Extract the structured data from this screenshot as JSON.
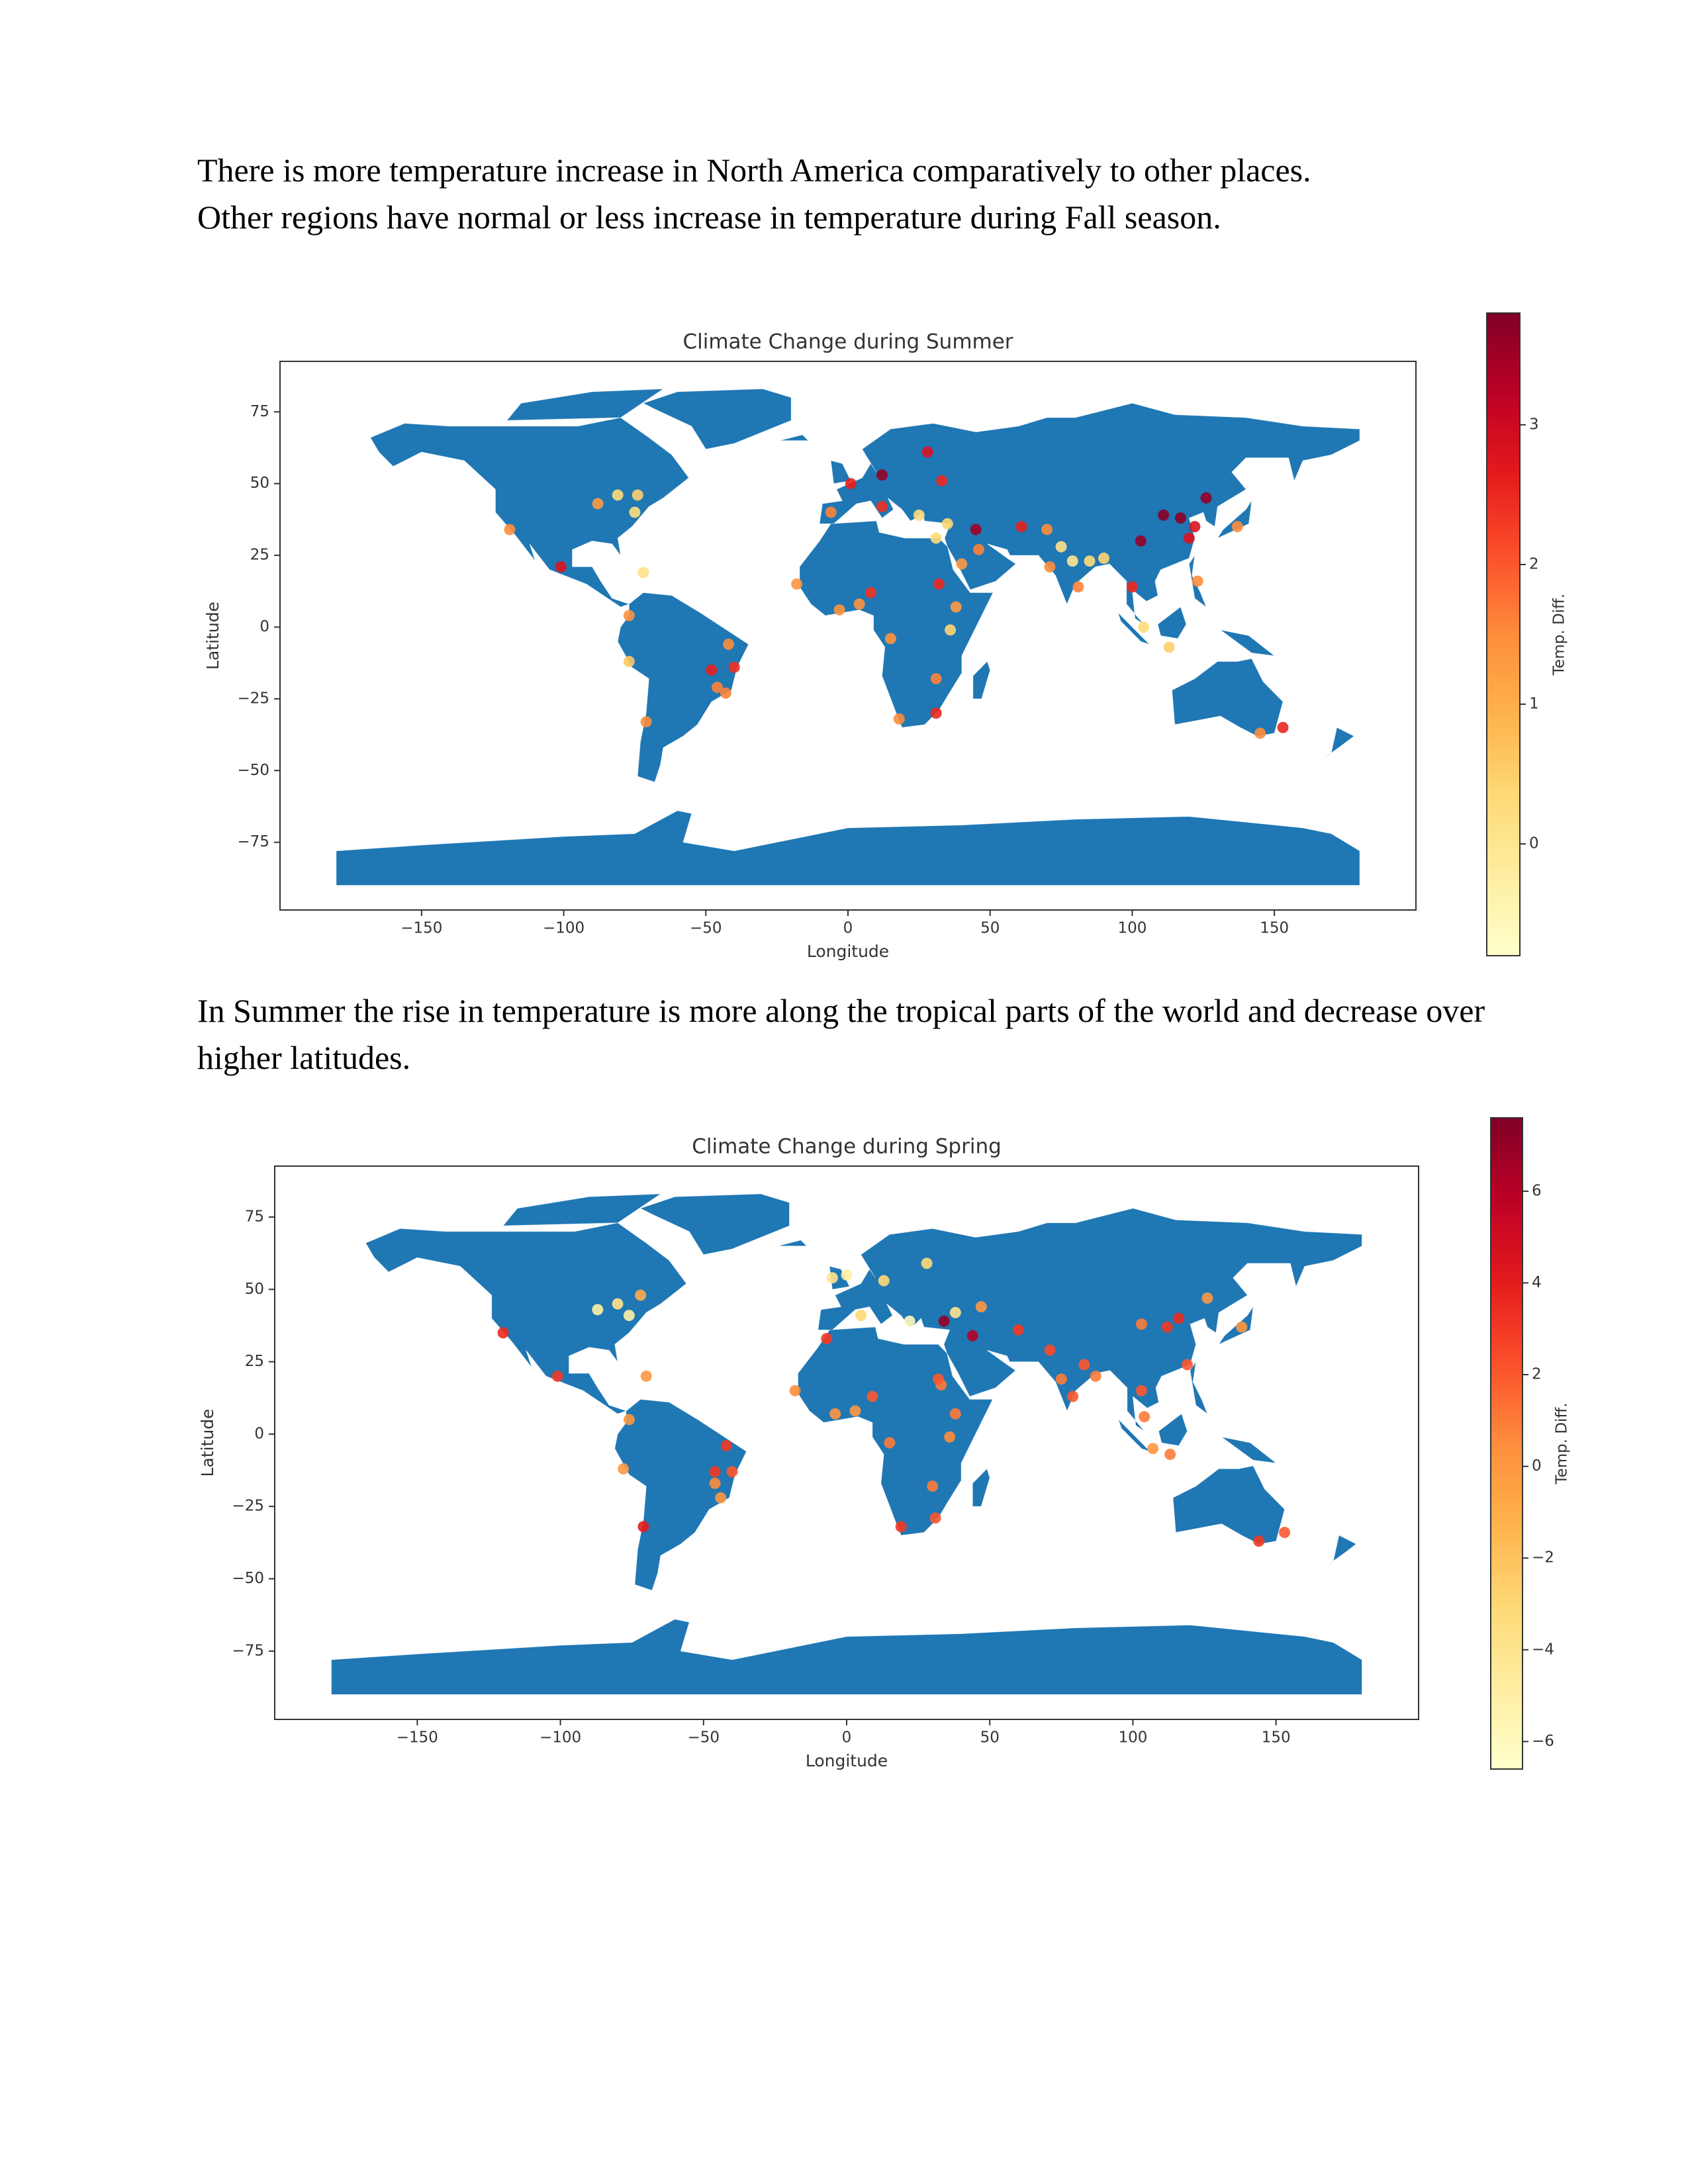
{
  "text_blocks": [
    "There is more temperature increase in North America comparatively to other places. Other regions have normal or less increase in temperature during Fall season.",
    "In Summer the rise in temperature is more along the tropical parts of the world and decrease over higher latitudes."
  ],
  "chart_data": [
    {
      "type": "scatter",
      "title": "Climate Change during Summer",
      "x_label": "Longitude",
      "y_label": "Latitude",
      "colorbar_label": "Temp. Diff.",
      "colormap": "YlOrRd",
      "map_color": "#1f77b4",
      "xlim": [
        -199.8,
        199.8
      ],
      "ylim": [
        -98.6,
        92.6
      ],
      "xticks": [
        {
          "value": -150,
          "label": "−150"
        },
        {
          "value": -100,
          "label": "−100"
        },
        {
          "value": -50,
          "label": "−50"
        },
        0,
        50,
        100,
        150
      ],
      "yticks": [
        {
          "value": -75,
          "label": "−75"
        },
        {
          "value": -50,
          "label": "−50"
        },
        {
          "value": -25,
          "label": "−25"
        },
        0,
        25,
        50,
        75
      ],
      "clim": [
        -0.8,
        3.8
      ],
      "cticks": [
        0,
        1,
        2,
        3
      ],
      "x": [
        -88,
        -81,
        -74,
        -75,
        -119,
        -101,
        -72,
        -77,
        -77,
        -71,
        -48,
        -46,
        -43,
        -40,
        -42,
        -18,
        -3,
        4,
        8,
        15,
        18,
        31,
        31,
        36,
        38,
        32,
        40,
        46,
        45,
        31,
        12,
        28,
        1,
        -6,
        12,
        25,
        35,
        33,
        61,
        70,
        75,
        79,
        85,
        71,
        81,
        90,
        104,
        113,
        100,
        103,
        111,
        117,
        120,
        126,
        122,
        137,
        123,
        145,
        153
      ],
      "y": [
        43,
        46,
        46,
        40,
        34,
        21,
        19,
        4,
        -12,
        -33,
        -15,
        -21,
        -23,
        -14,
        -6,
        15,
        6,
        8,
        12,
        -4,
        -32,
        -30,
        -18,
        -1,
        7,
        15,
        22,
        27,
        34,
        31,
        53,
        61,
        50,
        40,
        42,
        39,
        36,
        51,
        35,
        34,
        28,
        23,
        23,
        21,
        14,
        24,
        0,
        -7,
        14,
        30,
        39,
        38,
        31,
        45,
        35,
        35,
        16,
        -37,
        -35
      ],
      "values": [
        1.3,
        0.3,
        0.5,
        0.2,
        1.5,
        2.8,
        0.1,
        1.4,
        0.6,
        1.5,
        2.6,
        1.6,
        1.6,
        2.4,
        1.5,
        1.4,
        1.4,
        1.4,
        2.4,
        1.4,
        1.5,
        2.5,
        1.6,
        0.4,
        1.3,
        2.5,
        1.3,
        1.6,
        3.5,
        0.3,
        3.6,
        2.8,
        2.6,
        1.6,
        2.4,
        0.3,
        0.4,
        2.5,
        2.6,
        1.5,
        0.1,
        0.0,
        0.3,
        1.5,
        1.6,
        0.4,
        0.3,
        0.5,
        2.5,
        3.6,
        3.7,
        3.7,
        2.8,
        3.6,
        2.8,
        1.5,
        1.5,
        1.5,
        2.5
      ]
    },
    {
      "type": "scatter",
      "title": "Climate Change during Spring",
      "x_label": "Longitude",
      "y_label": "Latitude",
      "colorbar_label": "Temp. Diff.",
      "colormap": "YlOrRd",
      "map_color": "#1f77b4",
      "xlim": [
        -199.8,
        199.8
      ],
      "ylim": [
        -98.6,
        92.6
      ],
      "xticks": [
        {
          "value": -150,
          "label": "−150"
        },
        {
          "value": -100,
          "label": "−100"
        },
        {
          "value": -50,
          "label": "−50"
        },
        0,
        50,
        100,
        150
      ],
      "yticks": [
        {
          "value": -75,
          "label": "−75"
        },
        {
          "value": -50,
          "label": "−50"
        },
        {
          "value": -25,
          "label": "−25"
        },
        0,
        25,
        50,
        75
      ],
      "clim": [
        -6.6,
        7.6
      ],
      "cticks": [
        {
          "value": -6,
          "label": "−6"
        },
        {
          "value": -4,
          "label": "−4"
        },
        {
          "value": -2,
          "label": "−2"
        },
        0,
        2,
        4,
        6
      ],
      "x": [
        -87,
        -80,
        -72,
        -76,
        -120,
        -101,
        -70,
        -76,
        -78,
        -71,
        -42,
        -46,
        -44,
        -46,
        -40,
        -18,
        -4,
        3,
        9,
        15,
        19,
        31,
        30,
        36,
        38,
        33,
        32,
        -5,
        0,
        13,
        28,
        22,
        34,
        44,
        38,
        5,
        -7,
        47,
        60,
        71,
        75,
        79,
        83,
        87,
        103,
        104,
        107,
        113,
        103,
        112,
        116,
        119,
        126,
        138,
        144,
        153
      ],
      "y": [
        43,
        45,
        48,
        41,
        35,
        20,
        20,
        5,
        -12,
        -32,
        -4,
        -13,
        -22,
        -17,
        -13,
        15,
        7,
        8,
        13,
        -3,
        -32,
        -29,
        -18,
        -1,
        7,
        17,
        19,
        54,
        55,
        53,
        59,
        39,
        39,
        34,
        42,
        41,
        33,
        44,
        36,
        29,
        19,
        13,
        24,
        20,
        15,
        6,
        -5,
        -7,
        38,
        37,
        40,
        24,
        47,
        37,
        -37,
        -34
      ],
      "values": [
        -5,
        -4,
        -1,
        -5,
        3.5,
        3,
        0,
        0,
        0,
        4,
        3,
        3,
        0,
        0.5,
        2,
        0.5,
        0,
        0,
        2,
        1,
        3,
        2,
        1,
        0.5,
        1,
        1,
        2,
        -4,
        -5,
        -3,
        -3,
        -6,
        7,
        6,
        -4,
        -3,
        3,
        0,
        3,
        2.5,
        1,
        2,
        2,
        1,
        2,
        1,
        0,
        1,
        1,
        3,
        3.5,
        2,
        0,
        0,
        3,
        2
      ]
    }
  ]
}
